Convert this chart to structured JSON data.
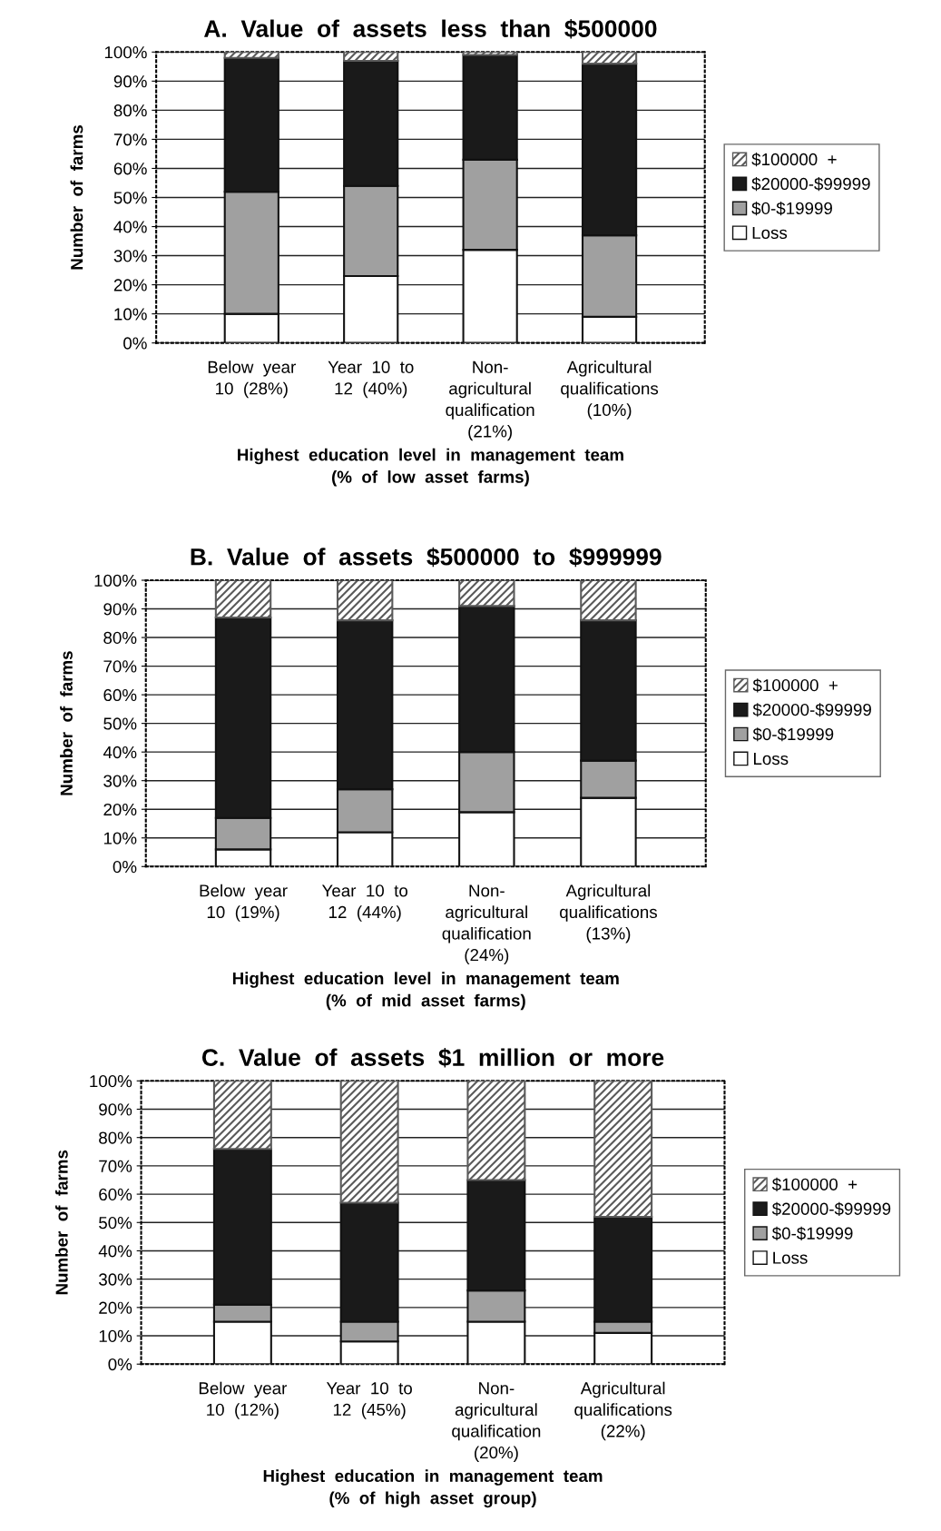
{
  "chart_data": [
    {
      "type": "bar",
      "stacked": true,
      "title": "A.  Value  of  assets  less  than  $500000",
      "xlabel": "Highest  education  level  in  management  team\n(%  of  low  asset  farms)",
      "ylabel": "Number  of  farms",
      "categories": [
        "Below  year\n10  (28%)",
        "Year  10  to\n12  (40%)",
        "Non-\nagricultural\nqualification\n(21%)",
        "Agricultural\nqualifications\n(10%)"
      ],
      "series": [
        {
          "name": "Loss",
          "color": "#ffffff",
          "values": [
            10,
            23,
            32,
            9
          ]
        },
        {
          "name": "$0-$19999",
          "color": "#a0a0a0",
          "values": [
            42,
            31,
            31,
            28
          ]
        },
        {
          "name": "$20000-$99999",
          "color": "#1a1a1a",
          "values": [
            46,
            43,
            36,
            59
          ]
        },
        {
          "name": "$100000  +",
          "color": "#5a5a5a",
          "values": [
            2,
            3,
            1,
            4
          ]
        }
      ],
      "ylim": [
        0,
        100
      ],
      "yticks": [
        {
          "value": 0,
          "label": "0%"
        },
        {
          "value": 10,
          "label": "10%"
        },
        {
          "value": 20,
          "label": "20%"
        },
        {
          "value": 30,
          "label": "30%"
        },
        {
          "value": 40,
          "label": "40%"
        },
        {
          "value": 50,
          "label": "50%"
        },
        {
          "value": 60,
          "label": "60%"
        },
        {
          "value": 70,
          "label": "70%"
        },
        {
          "value": 80,
          "label": "80%"
        },
        {
          "value": 90,
          "label": "90%"
        },
        {
          "value": 100,
          "label": "100%"
        }
      ],
      "grid": "y",
      "legend": "right"
    },
    {
      "type": "bar",
      "stacked": true,
      "title": "B.  Value  of  assets  $500000  to  $999999",
      "xlabel": "Highest  education  level  in  management  team\n(%  of  mid  asset  farms)",
      "ylabel": "Number  of  farms",
      "categories": [
        "Below  year\n10  (19%)",
        "Year  10  to\n12  (44%)",
        "Non-\nagricultural\nqualification\n(24%)",
        "Agricultural\nqualifications\n(13%)"
      ],
      "series": [
        {
          "name": "Loss",
          "color": "#ffffff",
          "values": [
            6,
            12,
            19,
            24
          ]
        },
        {
          "name": "$0-$19999",
          "color": "#a0a0a0",
          "values": [
            11,
            15,
            21,
            13
          ]
        },
        {
          "name": "$20000-$99999",
          "color": "#1a1a1a",
          "values": [
            70,
            59,
            51,
            49
          ]
        },
        {
          "name": "$100000  +",
          "color": "#5a5a5a",
          "values": [
            13,
            14,
            9,
            14
          ]
        }
      ],
      "ylim": [
        0,
        100
      ],
      "yticks": [
        {
          "value": 0,
          "label": "0%"
        },
        {
          "value": 10,
          "label": "10%"
        },
        {
          "value": 20,
          "label": "20%"
        },
        {
          "value": 30,
          "label": "30%"
        },
        {
          "value": 40,
          "label": "40%"
        },
        {
          "value": 50,
          "label": "50%"
        },
        {
          "value": 60,
          "label": "60%"
        },
        {
          "value": 70,
          "label": "70%"
        },
        {
          "value": 80,
          "label": "80%"
        },
        {
          "value": 90,
          "label": "90%"
        },
        {
          "value": 100,
          "label": "100%"
        }
      ],
      "grid": "y",
      "legend": "right"
    },
    {
      "type": "bar",
      "stacked": true,
      "title": "C.  Value  of  assets  $1  million  or  more",
      "xlabel": "Highest  education  in  management  team\n(%  of  high  asset  group)",
      "ylabel": "Number  of  farms",
      "categories": [
        "Below  year\n10  (12%)",
        "Year  10  to\n12  (45%)",
        "Non-\nagricultural\nqualification\n(20%)",
        "Agricultural\nqualifications\n(22%)"
      ],
      "series": [
        {
          "name": "Loss",
          "color": "#ffffff",
          "values": [
            15,
            8,
            15,
            11
          ]
        },
        {
          "name": "$0-$19999",
          "color": "#a0a0a0",
          "values": [
            6,
            7,
            11,
            4
          ]
        },
        {
          "name": "$20000-$99999",
          "color": "#1a1a1a",
          "values": [
            55,
            42,
            39,
            37
          ]
        },
        {
          "name": "$100000  +",
          "color": "#5a5a5a",
          "values": [
            24,
            43,
            35,
            48
          ]
        }
      ],
      "ylim": [
        0,
        100
      ],
      "yticks": [
        {
          "value": 0,
          "label": "0%"
        },
        {
          "value": 10,
          "label": "10%"
        },
        {
          "value": 20,
          "label": "20%"
        },
        {
          "value": 30,
          "label": "30%"
        },
        {
          "value": 40,
          "label": "40%"
        },
        {
          "value": 50,
          "label": "50%"
        },
        {
          "value": 60,
          "label": "60%"
        },
        {
          "value": 70,
          "label": "70%"
        },
        {
          "value": 80,
          "label": "80%"
        },
        {
          "value": 90,
          "label": "90%"
        },
        {
          "value": 100,
          "label": "100%"
        }
      ],
      "grid": "y",
      "legend": "right"
    }
  ]
}
